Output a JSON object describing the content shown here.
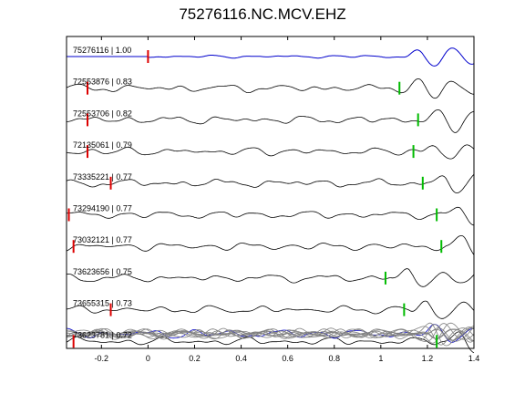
{
  "chart_data": {
    "type": "line",
    "title": "75276116.NC.MCV.EHZ",
    "xlim": [
      -0.35,
      1.4
    ],
    "xticks": [
      "-0.2",
      "0",
      "0.2",
      "0.4",
      "0.6",
      "0.8",
      "1",
      "1.2",
      "1.4"
    ],
    "xtick_values": [
      -0.2,
      0,
      0.2,
      0.4,
      0.6,
      0.8,
      1.0,
      1.2,
      1.4
    ],
    "grid": false,
    "master_color": "#0000cc",
    "trace_color": "#000000",
    "stack_color": "#808080",
    "red_marker_color": "#dd0000",
    "green_marker_color": "#00bb00",
    "series": [
      {
        "name": "75276116 | 1.00",
        "red_pick": 0.0,
        "green_pick": null
      },
      {
        "name": "72553876 | 0.83",
        "red_pick": -0.26,
        "green_pick": 1.08
      },
      {
        "name": "72553706 | 0.82",
        "red_pick": -0.26,
        "green_pick": 1.16
      },
      {
        "name": "72135061 | 0.79",
        "red_pick": -0.26,
        "green_pick": 1.14
      },
      {
        "name": "73335221 | 0.77",
        "red_pick": -0.16,
        "green_pick": 1.18
      },
      {
        "name": "73294190 | 0.77",
        "red_pick": -0.34,
        "green_pick": 1.24
      },
      {
        "name": "73032121 | 0.77",
        "red_pick": -0.32,
        "green_pick": 1.26
      },
      {
        "name": "73623656 | 0.75",
        "red_pick": null,
        "green_pick": 1.02
      },
      {
        "name": "73655315 | 0.73",
        "red_pick": -0.16,
        "green_pick": 1.1
      },
      {
        "name": "73623781 | 0.72",
        "red_pick": -0.32,
        "green_pick": 1.24
      }
    ]
  }
}
